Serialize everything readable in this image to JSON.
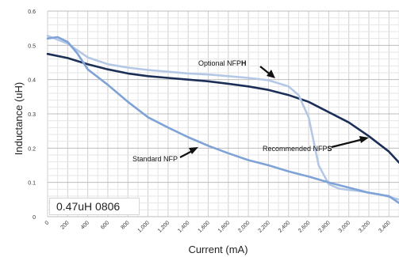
{
  "chart_data": {
    "type": "line",
    "title": "",
    "xlabel": "Current (mA)",
    "ylabel": "Inductance (uH)",
    "xlim": [
      0,
      3500
    ],
    "ylim": [
      0,
      0.6
    ],
    "grid": true,
    "y_ticks": [
      "0",
      "0.1",
      "0.2",
      "0.3",
      "0.4",
      "0.5",
      "0.6"
    ],
    "x_ticks": [
      "0",
      "200",
      "400",
      "600",
      "800",
      "1,000",
      "1,200",
      "1,400",
      "1,600",
      "1,800",
      "2,000",
      "2,200",
      "2,400",
      "2,600",
      "2,800",
      "3,000",
      "3,200",
      "3,400"
    ],
    "inset_label": "0.47uH 0806",
    "annotations": {
      "optional": {
        "prefix": "Optional NFP",
        "suffix": "H"
      },
      "standard": {
        "text": "Standard NFP"
      },
      "recommended": {
        "prefix": "Recommended NFP",
        "suffix": "S"
      }
    },
    "series": [
      {
        "key": "recommended",
        "color": "#1c2f57",
        "x": [
          0,
          200,
          400,
          600,
          800,
          1000,
          1200,
          1400,
          1600,
          1800,
          2000,
          2200,
          2400,
          2600,
          2800,
          3000,
          3200,
          3400,
          3500
        ],
        "y": [
          0.475,
          0.463,
          0.445,
          0.43,
          0.418,
          0.41,
          0.405,
          0.4,
          0.395,
          0.388,
          0.38,
          0.37,
          0.355,
          0.335,
          0.305,
          0.275,
          0.235,
          0.19,
          0.158
        ]
      },
      {
        "key": "optional",
        "color": "#b4c8e6",
        "x": [
          0,
          200,
          400,
          600,
          800,
          1000,
          1200,
          1400,
          1600,
          1800,
          2000,
          2200,
          2400,
          2500,
          2600,
          2650,
          2700,
          2800,
          2900,
          3000,
          3100,
          3200,
          3300,
          3400,
          3500
        ],
        "y": [
          0.528,
          0.505,
          0.465,
          0.445,
          0.435,
          0.428,
          0.423,
          0.418,
          0.415,
          0.41,
          0.405,
          0.398,
          0.38,
          0.355,
          0.29,
          0.22,
          0.15,
          0.095,
          0.082,
          0.078,
          0.075,
          0.07,
          0.065,
          0.058,
          0.05
        ]
      },
      {
        "key": "standard",
        "color": "#7fa3d6",
        "x": [
          0,
          100,
          200,
          300,
          400,
          600,
          800,
          1000,
          1200,
          1400,
          1600,
          1800,
          2000,
          2200,
          2400,
          2600,
          2800,
          3000,
          3200,
          3400,
          3500
        ],
        "y": [
          0.52,
          0.524,
          0.51,
          0.475,
          0.43,
          0.385,
          0.335,
          0.29,
          0.26,
          0.232,
          0.207,
          0.185,
          0.165,
          0.15,
          0.132,
          0.117,
          0.1,
          0.085,
          0.07,
          0.06,
          0.04
        ]
      }
    ]
  }
}
